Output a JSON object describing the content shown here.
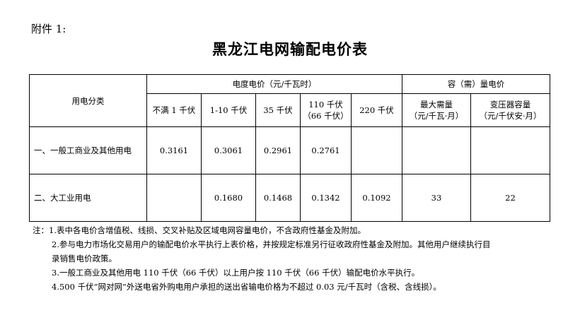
{
  "attachment_label": "附件 1:",
  "title": "黑龙江电网输配电价表",
  "table": {
    "category_header": "用电分类",
    "energy_header": "电度电价（元/千瓦时）",
    "capacity_header": "容（需）量电价",
    "voltage_cols": [
      "不满 1 千伏",
      "1-10 千伏",
      "35 千伏",
      "110 千伏",
      "220 千伏"
    ],
    "voltage_col4_sub": "（66 千伏）",
    "capacity_cols": [
      {
        "line1": "最大需量",
        "line2": "（元/千瓦·月）"
      },
      {
        "line1": "变压器容量",
        "line2": "（元/千伏安·月）"
      }
    ],
    "rows": [
      {
        "category": "一、一般工商业及其他用电",
        "values": [
          "0.3161",
          "0.3061",
          "0.2961",
          "0.2761",
          "",
          "",
          ""
        ]
      },
      {
        "category": "二、大工业用电",
        "values": [
          "",
          "0.1680",
          "0.1468",
          "0.1342",
          "0.1092",
          "33",
          "22"
        ]
      }
    ]
  },
  "notes": [
    "注：1.表中各电价含增值税、线损、交叉补贴及区域电网容量电价，不含政府性基金及附加。",
    "2.参与电力市场化交易用户的输配电价水平执行上表价格，并按规定标准另行征收政府性基金及附加。其他用户继续执行目",
    "录销售电价政策。",
    "3.一般工商业及其他用电 110 千伏（66 千伏）以上用户按 110 千伏（66 千伏）输配电价水平执行。",
    "4.500 千伏“网对网”外送电省外购电用户承担的送出省输电价格为不超过 0.03 元/千瓦时（含税、含线损）。"
  ]
}
